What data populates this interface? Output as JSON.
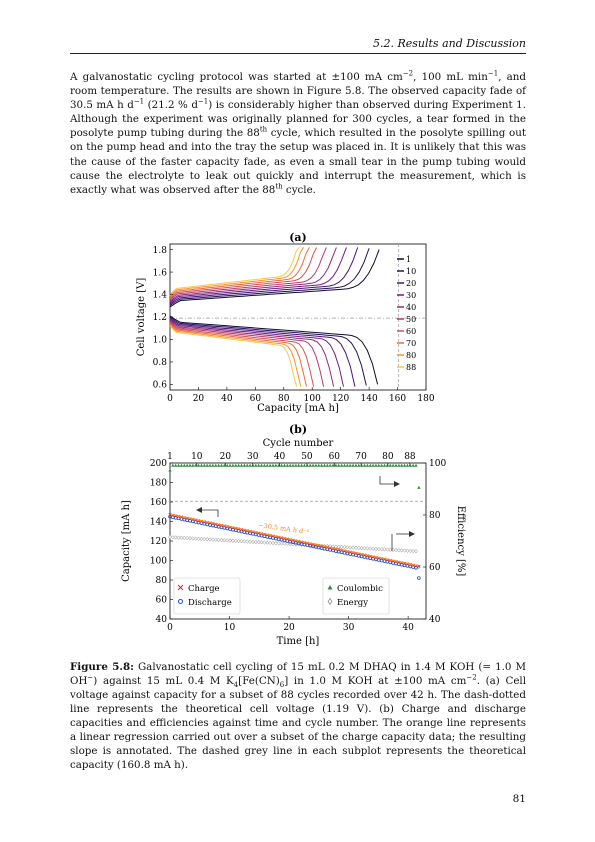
{
  "header": {
    "running_head": "5.2.  Results and Discussion"
  },
  "body": {
    "paragraph_html": "A galvanostatic cycling protocol was started at ±100 mA cm<sup>−2</sup>, 100 mL min<sup>−1</sup>, and room temperature. The results are shown in Figure 5.8. The observed capacity fade of 30.5 mA h d<sup>−1</sup> (21.2 % d<sup>−1</sup>) is considerably higher than observed during Experiment 1. Although the experiment was originally planned for 300 cycles, a tear formed in the posolyte pump tubing during the 88<sup>th</sup> cycle, which resulted in the posolyte spilling out on the pump head and into the tray the setup was placed in. It is unlikely that this was the cause of the faster capacity fade, as even a small tear in the pump tubing would cause the electrolyte to leak out quickly and interrupt the measurement, which is exactly what was observed after the 88<sup>th</sup> cycle."
  },
  "figure": {
    "caption_label": "Figure 5.8:",
    "caption_html": " Galvanostatic cell cycling of 15 mL 0.2 M DHAQ in 1.4 M KOH (= 1.0 M OH<sup>−</sup>) against 15 mL 0.4 M K<sub>4</sub>[Fe(CN)<sub>6</sub>] in 1.0 M KOH at ±100 mA cm<sup>−2</sup>. (a) Cell voltage against capacity for a subset of 88 cycles recorded over 42 h. The dash-dotted line represents the theoretical cell voltage (1.19 V). (b) Charge and discharge capacities and efficiencies against time and cycle number. The orange line represents a linear regression carried out over a subset of the charge capacity data; the resulting slope is annotated. The dashed grey line in each subplot represents the theoretical capacity (160.8 mA h)."
  },
  "chart_data": [
    {
      "type": "line",
      "panel_label": "(a)",
      "xlabel": "Capacity [mA h]",
      "ylabel": "Cell voltage [V]",
      "xlim": [
        0,
        180
      ],
      "ylim": [
        0.55,
        1.85
      ],
      "xticks": [
        "0",
        "20",
        "40",
        "60",
        "80",
        "100",
        "120",
        "140",
        "160",
        "180"
      ],
      "yticks": [
        "0.6",
        "0.8",
        "1.0",
        "1.2",
        "1.4",
        "1.6",
        "1.8"
      ],
      "legend_position": "right",
      "series": [
        {
          "name": "1",
          "color": "#0d0d2e",
          "charge_capacity": 147,
          "discharge_capacity": 146
        },
        {
          "name": "10",
          "color": "#2a1060",
          "charge_capacity": 140,
          "discharge_capacity": 138
        },
        {
          "name": "20",
          "color": "#4c1080",
          "charge_capacity": 132,
          "discharge_capacity": 130
        },
        {
          "name": "30",
          "color": "#6e1c81",
          "charge_capacity": 124,
          "discharge_capacity": 122
        },
        {
          "name": "40",
          "color": "#902b79",
          "charge_capacity": 117,
          "discharge_capacity": 115
        },
        {
          "name": "50",
          "color": "#b63a6a",
          "charge_capacity": 110,
          "discharge_capacity": 108
        },
        {
          "name": "60",
          "color": "#d64f54",
          "charge_capacity": 103,
          "discharge_capacity": 101
        },
        {
          "name": "70",
          "color": "#ec6c3a",
          "charge_capacity": 98,
          "discharge_capacity": 96
        },
        {
          "name": "80",
          "color": "#f7952a",
          "charge_capacity": 94,
          "discharge_capacity": 92
        },
        {
          "name": "88",
          "color": "#f6c64f",
          "charge_capacity": 91,
          "discharge_capacity": 89
        }
      ],
      "reference_lines": {
        "theoretical_voltage": 1.19,
        "theoretical_capacity": 160.8
      }
    },
    {
      "type": "scatter",
      "panel_label": "(b)",
      "xlabel": "Time [h]",
      "top_xlabel": "Cycle number",
      "ylabel": "Capacity [mA h]",
      "y2label": "Efficiency [%]",
      "xlim": [
        0,
        43
      ],
      "ylim": [
        40,
        200
      ],
      "y2lim": [
        40,
        100
      ],
      "xticks": [
        "0",
        "10",
        "20",
        "30",
        "40"
      ],
      "top_xticks": [
        "1",
        "10",
        "20",
        "30",
        "40",
        "50",
        "60",
        "70",
        "80",
        "88"
      ],
      "top_xtick_times": [
        0,
        4.5,
        9.3,
        13.9,
        18.4,
        23.0,
        27.6,
        32.1,
        36.6,
        40.3
      ],
      "yticks": [
        "40",
        "60",
        "80",
        "100",
        "120",
        "140",
        "160",
        "180",
        "200"
      ],
      "y2ticks": [
        "40",
        "60",
        "80",
        "100"
      ],
      "annotation": "−30.5 mA h d⁻¹",
      "series": [
        {
          "name": "Charge",
          "marker": "x",
          "color": "#e41a1c",
          "start": 147,
          "end": 94
        },
        {
          "name": "Discharge",
          "marker": "o",
          "color": "#1f4fd1",
          "start": 145,
          "end": 92
        },
        {
          "name": "Coulombic",
          "marker": "^",
          "color": "#2e8b3e",
          "value": 99.0
        },
        {
          "name": "Energy",
          "marker": "d",
          "color": "#888888",
          "start": 71.5,
          "end": 66.0
        }
      ],
      "reference_lines": {
        "theoretical_capacity": 160.8
      },
      "legend_left": [
        "Charge",
        "Discharge"
      ],
      "legend_right": [
        "Coulombic",
        "Energy"
      ]
    }
  ],
  "page_number": "81"
}
